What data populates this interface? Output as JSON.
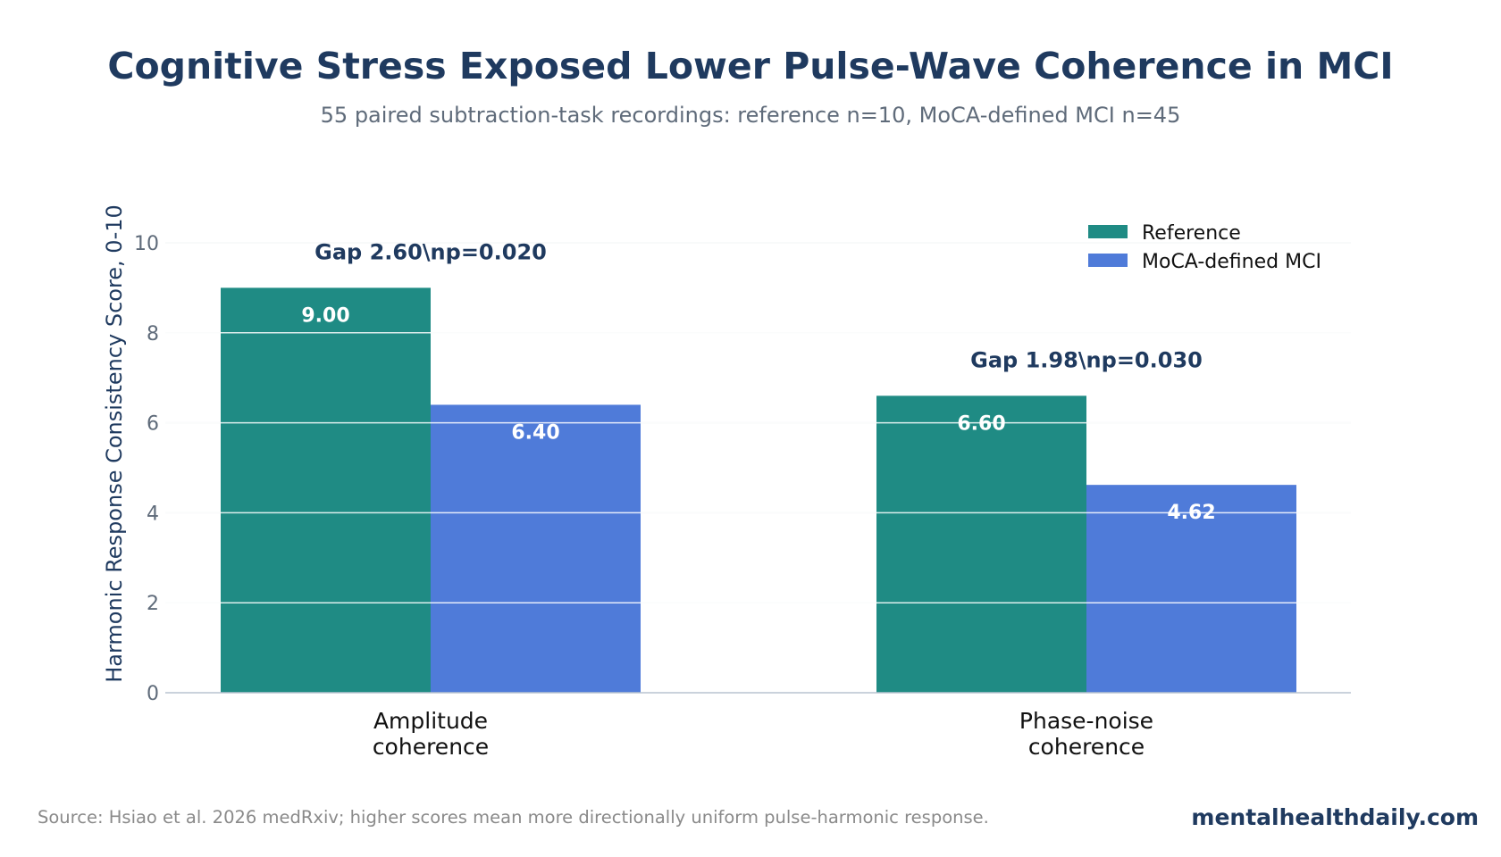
{
  "chart_data": {
    "type": "bar",
    "title": "Cognitive Stress Exposed Lower Pulse-Wave Coherence in MCI",
    "subtitle": "55 paired subtraction-task recordings: reference n=10, MoCA-defined MCI n=45",
    "xlabel": "",
    "ylabel": "Harmonic Response Consistency Score, 0-10",
    "ylim": [
      0,
      11
    ],
    "yticks": [
      "0",
      "2",
      "4",
      "6",
      "8",
      "10"
    ],
    "grid": true,
    "legend_position": "top-right",
    "categories": [
      [
        "Amplitude",
        "coherence"
      ],
      [
        "Phase-noise",
        "coherence"
      ]
    ],
    "series": [
      {
        "name": "Reference",
        "color": "#1f8b84",
        "values": [
          9.0,
          6.6
        ],
        "labels": [
          "9.00",
          "6.60"
        ]
      },
      {
        "name": "MoCA-defined MCI",
        "color": "#4f7bd9",
        "values": [
          6.4,
          4.62
        ],
        "labels": [
          "6.40",
          "4.62"
        ]
      }
    ],
    "annotations": [
      "Gap 2.60\\np=0.020",
      "Gap 1.98\\np=0.030"
    ]
  },
  "footer": {
    "source": "Source: Hsiao et al. 2026 medRxiv; higher scores mean more directionally uniform pulse-harmonic response.",
    "brand": "mentalhealthdaily.com"
  }
}
